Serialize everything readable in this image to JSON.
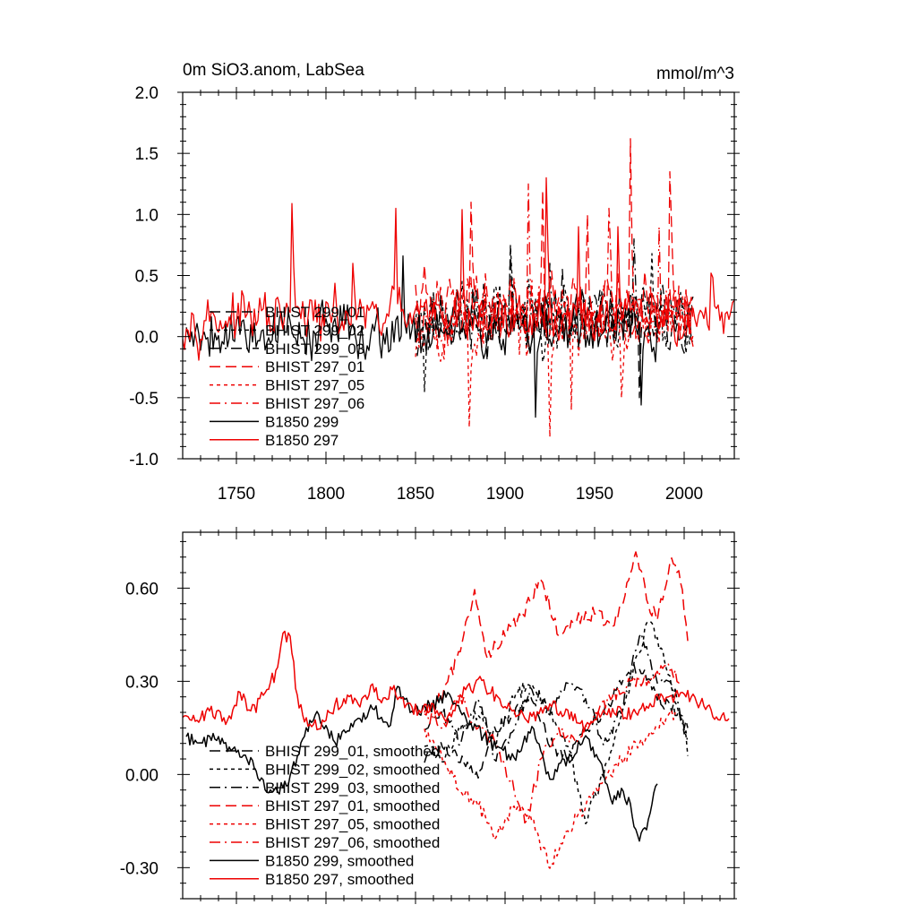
{
  "colors": {
    "black": "#000000",
    "red": "#ee0000",
    "frame": "#000000"
  },
  "chart_data": [
    {
      "type": "line",
      "title": "0m SiO3.anom, LabSea",
      "units": "mmol/m^3",
      "xlim": [
        1720,
        2028
      ],
      "ylim": [
        -1.0,
        2.0
      ],
      "x_ticks": [
        1750,
        1800,
        1850,
        1900,
        1950,
        2000
      ],
      "x_tick_labels": [
        "1750",
        "1800",
        "1850",
        "1900",
        "1950",
        "2000"
      ],
      "y_ticks": [
        -1.0,
        -0.5,
        0.0,
        0.5,
        1.0,
        1.5,
        2.0
      ],
      "y_tick_labels": [
        "-1.0",
        "-0.5",
        "0.0",
        "0.5",
        "1.0",
        "1.5",
        "2.0"
      ],
      "legend_position": "lower-left",
      "series": [
        {
          "name": "BHIST 299_01",
          "color": "black",
          "dash": "long",
          "x_range": [
            1850,
            2005
          ],
          "mean": 0.15,
          "amplitude": 0.28,
          "seed": 11,
          "spikes": [
            [
              1903,
              0.72
            ],
            [
              1932,
              0.55
            ],
            [
              1975,
              -0.5
            ]
          ]
        },
        {
          "name": "BHIST 299_02",
          "color": "black",
          "dash": "short",
          "x_range": [
            1850,
            2005
          ],
          "mean": 0.18,
          "amplitude": 0.3,
          "seed": 23,
          "spikes": [
            [
              1855,
              -0.45
            ],
            [
              1903,
              0.75
            ],
            [
              1982,
              0.68
            ]
          ]
        },
        {
          "name": "BHIST 299_03",
          "color": "black",
          "dash": "dashdot",
          "x_range": [
            1850,
            2005
          ],
          "mean": 0.15,
          "amplitude": 0.28,
          "seed": 37,
          "spikes": [
            [
              1925,
              0.6
            ],
            [
              1972,
              0.8
            ]
          ]
        },
        {
          "name": "BHIST 297_01",
          "color": "red",
          "dash": "long",
          "x_range": [
            1850,
            2005
          ],
          "mean": 0.25,
          "amplitude": 0.32,
          "seed": 41,
          "spikes": [
            [
              1881,
              1.1
            ],
            [
              1921,
              1.2
            ],
            [
              1946,
              1.0
            ],
            [
              1970,
              1.62
            ],
            [
              1992,
              1.35
            ]
          ]
        },
        {
          "name": "BHIST 297_05",
          "color": "red",
          "dash": "short",
          "x_range": [
            1850,
            2005
          ],
          "mean": 0.1,
          "amplitude": 0.3,
          "seed": 53,
          "spikes": [
            [
              1880,
              -0.74
            ],
            [
              1925,
              -0.82
            ],
            [
              1937,
              -0.6
            ],
            [
              1965,
              -0.5
            ]
          ]
        },
        {
          "name": "BHIST 297_06",
          "color": "red",
          "dash": "dashdot",
          "x_range": [
            1850,
            2005
          ],
          "mean": 0.2,
          "amplitude": 0.3,
          "seed": 67,
          "spikes": [
            [
              1913,
              1.25
            ],
            [
              1958,
              1.05
            ],
            [
              1986,
              0.9
            ]
          ]
        },
        {
          "name": "B1850 299",
          "color": "black",
          "dash": "solid",
          "x_range": [
            1722,
            1985
          ],
          "mean": 0.05,
          "amplitude": 0.25,
          "seed": 79,
          "spikes": [
            [
              1843,
              0.66
            ],
            [
              1917,
              -0.66
            ],
            [
              1976,
              -0.56
            ]
          ]
        },
        {
          "name": "B1850 297",
          "color": "red",
          "dash": "solid",
          "x_range": [
            1720,
            2028
          ],
          "mean": 0.15,
          "amplitude": 0.22,
          "seed": 97,
          "spikes": [
            [
              1781,
              1.09
            ],
            [
              1815,
              0.6
            ],
            [
              1839,
              1.05
            ],
            [
              1876,
              1.04
            ],
            [
              1923,
              1.3
            ],
            [
              1941,
              0.9
            ],
            [
              1963,
              0.9
            ],
            [
              2015,
              0.52
            ]
          ]
        }
      ]
    },
    {
      "type": "line",
      "xlim": [
        1720,
        2028
      ],
      "ylim": [
        -0.4,
        0.78
      ],
      "x_ticks": [
        1750,
        1800,
        1850,
        1900,
        1950,
        2000
      ],
      "y_ticks": [
        -0.3,
        0.0,
        0.3,
        0.6
      ],
      "y_tick_labels": [
        "-0.30",
        "0.00",
        "0.30",
        "0.60"
      ],
      "legend_position": "lower-left",
      "series": [
        {
          "name": "BHIST 299_01, smoothed",
          "color": "black",
          "dash": "long",
          "points": [
            [
              1855,
              0.05
            ],
            [
              1865,
              0.1
            ],
            [
              1875,
              0.05
            ],
            [
              1885,
              0.0
            ],
            [
              1895,
              0.15
            ],
            [
              1905,
              0.2
            ],
            [
              1915,
              0.25
            ],
            [
              1925,
              0.1
            ],
            [
              1935,
              0.05
            ],
            [
              1945,
              0.15
            ],
            [
              1955,
              0.2
            ],
            [
              1965,
              0.3
            ],
            [
              1975,
              0.35
            ],
            [
              1985,
              0.25
            ],
            [
              1995,
              0.2
            ],
            [
              2002,
              0.15
            ]
          ]
        },
        {
          "name": "BHIST 299_02, smoothed",
          "color": "black",
          "dash": "short",
          "points": [
            [
              1855,
              0.1
            ],
            [
              1865,
              0.05
            ],
            [
              1875,
              0.15
            ],
            [
              1885,
              0.2
            ],
            [
              1895,
              0.1
            ],
            [
              1905,
              0.25
            ],
            [
              1915,
              0.3
            ],
            [
              1925,
              0.2
            ],
            [
              1935,
              0.1
            ],
            [
              1945,
              -0.15
            ],
            [
              1955,
              0.0
            ],
            [
              1965,
              0.2
            ],
            [
              1975,
              0.4
            ],
            [
              1980,
              0.5
            ],
            [
              1990,
              0.35
            ],
            [
              2000,
              0.15
            ],
            [
              2002,
              0.06
            ]
          ]
        },
        {
          "name": "BHIST 299_03, smoothed",
          "color": "black",
          "dash": "dashdot",
          "points": [
            [
              1855,
              0.15
            ],
            [
              1865,
              0.2
            ],
            [
              1875,
              0.1
            ],
            [
              1885,
              0.25
            ],
            [
              1895,
              0.05
            ],
            [
              1905,
              0.15
            ],
            [
              1915,
              0.28
            ],
            [
              1925,
              0.2
            ],
            [
              1935,
              0.3
            ],
            [
              1945,
              0.25
            ],
            [
              1955,
              0.1
            ],
            [
              1965,
              0.2
            ],
            [
              1975,
              0.45
            ],
            [
              1985,
              0.3
            ],
            [
              1995,
              0.28
            ],
            [
              2002,
              0.1
            ]
          ]
        },
        {
          "name": "BHIST 297_01, smoothed",
          "color": "red",
          "dash": "long",
          "points": [
            [
              1855,
              0.2
            ],
            [
              1865,
              0.25
            ],
            [
              1875,
              0.4
            ],
            [
              1883,
              0.6
            ],
            [
              1890,
              0.38
            ],
            [
              1900,
              0.45
            ],
            [
              1910,
              0.52
            ],
            [
              1920,
              0.63
            ],
            [
              1930,
              0.45
            ],
            [
              1940,
              0.5
            ],
            [
              1950,
              0.52
            ],
            [
              1960,
              0.48
            ],
            [
              1967,
              0.58
            ],
            [
              1973,
              0.72
            ],
            [
              1980,
              0.55
            ],
            [
              1985,
              0.5
            ],
            [
              1993,
              0.7
            ],
            [
              1998,
              0.62
            ],
            [
              2002,
              0.43
            ]
          ]
        },
        {
          "name": "BHIST 297_05, smoothed",
          "color": "red",
          "dash": "short",
          "points": [
            [
              1855,
              0.15
            ],
            [
              1865,
              0.05
            ],
            [
              1875,
              -0.05
            ],
            [
              1885,
              -0.1
            ],
            [
              1895,
              -0.2
            ],
            [
              1905,
              -0.1
            ],
            [
              1915,
              -0.15
            ],
            [
              1925,
              -0.3
            ],
            [
              1935,
              -0.18
            ],
            [
              1945,
              -0.1
            ],
            [
              1955,
              -0.02
            ],
            [
              1965,
              0.05
            ],
            [
              1975,
              0.1
            ],
            [
              1985,
              0.15
            ],
            [
              1995,
              0.2
            ]
          ]
        },
        {
          "name": "BHIST 297_06, smoothed",
          "color": "red",
          "dash": "dashdot",
          "points": [
            [
              1855,
              0.2
            ],
            [
              1865,
              0.15
            ],
            [
              1875,
              0.25
            ],
            [
              1885,
              0.15
            ],
            [
              1895,
              0.1
            ],
            [
              1905,
              -0.05
            ],
            [
              1912,
              -0.15
            ],
            [
              1920,
              0.05
            ],
            [
              1930,
              0.15
            ],
            [
              1940,
              0.1
            ],
            [
              1950,
              0.2
            ],
            [
              1960,
              0.25
            ],
            [
              1970,
              0.3
            ],
            [
              1980,
              0.3
            ],
            [
              1990,
              0.35
            ],
            [
              1998,
              0.3
            ]
          ]
        },
        {
          "name": "B1850 299, smoothed",
          "color": "black",
          "dash": "solid",
          "points": [
            [
              1722,
              0.12
            ],
            [
              1730,
              0.1
            ],
            [
              1740,
              0.12
            ],
            [
              1748,
              0.08
            ],
            [
              1755,
              0.06
            ],
            [
              1765,
              -0.02
            ],
            [
              1770,
              -0.06
            ],
            [
              1778,
              -0.04
            ],
            [
              1788,
              0.12
            ],
            [
              1795,
              0.2
            ],
            [
              1805,
              0.1
            ],
            [
              1815,
              0.15
            ],
            [
              1825,
              0.22
            ],
            [
              1835,
              0.15
            ],
            [
              1840,
              0.28
            ],
            [
              1848,
              0.2
            ],
            [
              1858,
              0.22
            ],
            [
              1868,
              0.26
            ],
            [
              1878,
              0.18
            ],
            [
              1888,
              0.12
            ],
            [
              1898,
              0.08
            ],
            [
              1905,
              0.05
            ],
            [
              1915,
              0.15
            ],
            [
              1925,
              -0.02
            ],
            [
              1935,
              0.05
            ],
            [
              1945,
              0.12
            ],
            [
              1955,
              0.0
            ],
            [
              1960,
              -0.1
            ],
            [
              1965,
              -0.05
            ],
            [
              1970,
              -0.1
            ],
            [
              1975,
              -0.22
            ],
            [
              1980,
              -0.15
            ],
            [
              1985,
              -0.03
            ]
          ]
        },
        {
          "name": "B1850 297, smoothed",
          "color": "red",
          "dash": "solid",
          "points": [
            [
              1720,
              0.18
            ],
            [
              1728,
              0.17
            ],
            [
              1735,
              0.2
            ],
            [
              1745,
              0.17
            ],
            [
              1752,
              0.26
            ],
            [
              1758,
              0.2
            ],
            [
              1765,
              0.25
            ],
            [
              1772,
              0.33
            ],
            [
              1776,
              0.45
            ],
            [
              1780,
              0.44
            ],
            [
              1784,
              0.25
            ],
            [
              1790,
              0.15
            ],
            [
              1798,
              0.17
            ],
            [
              1805,
              0.22
            ],
            [
              1812,
              0.25
            ],
            [
              1818,
              0.22
            ],
            [
              1825,
              0.28
            ],
            [
              1832,
              0.24
            ],
            [
              1838,
              0.28
            ],
            [
              1845,
              0.22
            ],
            [
              1852,
              0.2
            ],
            [
              1860,
              0.22
            ],
            [
              1868,
              0.18
            ],
            [
              1875,
              0.25
            ],
            [
              1885,
              0.3
            ],
            [
              1895,
              0.25
            ],
            [
              1905,
              0.2
            ],
            [
              1915,
              0.18
            ],
            [
              1925,
              0.22
            ],
            [
              1935,
              0.2
            ],
            [
              1945,
              0.15
            ],
            [
              1955,
              0.2
            ],
            [
              1965,
              0.2
            ],
            [
              1975,
              0.2
            ],
            [
              1985,
              0.25
            ],
            [
              1995,
              0.25
            ],
            [
              2005,
              0.25
            ],
            [
              2015,
              0.2
            ],
            [
              2025,
              0.18
            ]
          ]
        }
      ]
    }
  ]
}
